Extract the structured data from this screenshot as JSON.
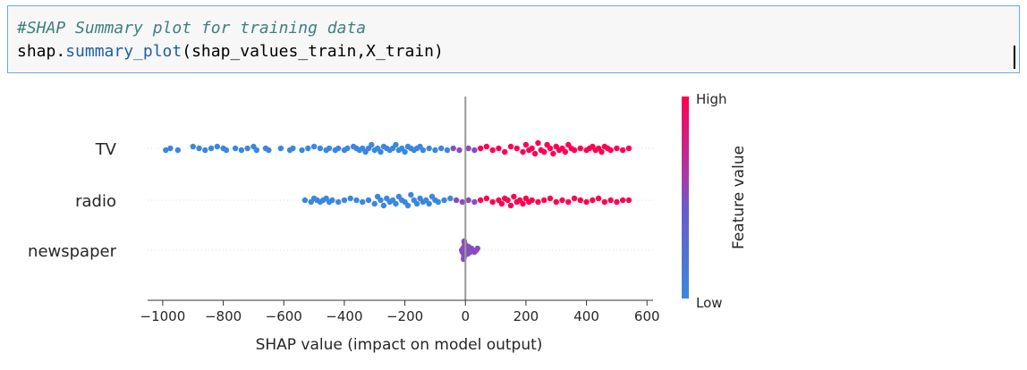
{
  "cell": {
    "comment": "#SHAP Summary plot for training data",
    "code_prefix": "shap.",
    "code_function": "summary_plot",
    "code_args": "(shap_values_train,X_train)"
  },
  "colors": {
    "low": "#3b87e0",
    "high": "#ff0052",
    "mid": "#8a4bbf",
    "zero_line": "#999999"
  },
  "chart_data": {
    "type": "scatter",
    "title": "",
    "xlabel": "SHAP value (impact on model output)",
    "ylabel": "",
    "xlim": [
      -1050,
      620
    ],
    "xticks": [
      -1000,
      -800,
      -600,
      -400,
      -200,
      0,
      200,
      400,
      600
    ],
    "xtick_labels": [
      "−1000",
      "−800",
      "−600",
      "−400",
      "−200",
      "0",
      "200",
      "400",
      "600"
    ],
    "features": [
      "TV",
      "radio",
      "newspaper"
    ],
    "colorbar": {
      "label": "Feature value",
      "high_label": "High",
      "low_label": "Low"
    },
    "series": [
      {
        "feature": "TV",
        "points": [
          [
            -990,
            0.05
          ],
          [
            -975,
            0.0
          ],
          [
            -950,
            0.05
          ],
          [
            -900,
            -0.05
          ],
          [
            -880,
            0.0
          ],
          [
            -860,
            0.05
          ],
          [
            -840,
            0.0
          ],
          [
            -820,
            -0.05
          ],
          [
            -800,
            0.0
          ],
          [
            -790,
            0.05
          ],
          [
            -760,
            0.0
          ],
          [
            -740,
            0.05
          ],
          [
            -720,
            0.0
          ],
          [
            -700,
            -0.05
          ],
          [
            -690,
            0.05
          ],
          [
            -660,
            0.0
          ],
          [
            -650,
            0.05
          ],
          [
            -610,
            0.0
          ],
          [
            -580,
            0.05
          ],
          [
            -570,
            0.0
          ],
          [
            -540,
            0.05
          ],
          [
            -520,
            0.0
          ],
          [
            -500,
            -0.05
          ],
          [
            -480,
            0.0
          ],
          [
            -460,
            0.05
          ],
          [
            -450,
            0.0
          ],
          [
            -430,
            0.05
          ],
          [
            -420,
            0.0
          ],
          [
            -400,
            0.05
          ],
          [
            -390,
            0.0
          ],
          [
            -370,
            -0.05
          ],
          [
            -360,
            0.0
          ],
          [
            -350,
            0.05
          ],
          [
            -340,
            0.0
          ],
          [
            -330,
            0.1
          ],
          [
            -320,
            0.0
          ],
          [
            -310,
            -0.1
          ],
          [
            -300,
            0.05
          ],
          [
            -290,
            0.0
          ],
          [
            -280,
            0.1
          ],
          [
            -270,
            -0.05
          ],
          [
            -260,
            0.0
          ],
          [
            -250,
            0.05
          ],
          [
            -240,
            0.0
          ],
          [
            -230,
            -0.1
          ],
          [
            -220,
            0.05
          ],
          [
            -210,
            0.0
          ],
          [
            -200,
            0.1
          ],
          [
            -190,
            -0.05
          ],
          [
            -180,
            0.0
          ],
          [
            -170,
            0.05
          ],
          [
            -160,
            0.0
          ],
          [
            -150,
            -0.05
          ],
          [
            -140,
            0.05
          ],
          [
            -120,
            0.0
          ],
          [
            -100,
            0.05
          ],
          [
            -80,
            0.0
          ],
          [
            -60,
            0.05
          ],
          [
            -40,
            0.0
          ],
          [
            -20,
            0.05
          ],
          [
            10,
            0.0
          ],
          [
            30,
            0.05
          ],
          [
            50,
            0.0
          ],
          [
            70,
            -0.05
          ],
          [
            90,
            0.05
          ],
          [
            110,
            0.0
          ],
          [
            130,
            0.1
          ],
          [
            150,
            -0.05
          ],
          [
            170,
            0.0
          ],
          [
            190,
            0.1
          ],
          [
            200,
            -0.1
          ],
          [
            210,
            0.05
          ],
          [
            220,
            0.0
          ],
          [
            230,
            0.15
          ],
          [
            240,
            -0.15
          ],
          [
            250,
            0.05
          ],
          [
            260,
            0.1
          ],
          [
            270,
            -0.1
          ],
          [
            280,
            0.0
          ],
          [
            290,
            0.15
          ],
          [
            300,
            -0.05
          ],
          [
            310,
            0.05
          ],
          [
            320,
            0.0
          ],
          [
            330,
            0.1
          ],
          [
            340,
            -0.1
          ],
          [
            350,
            0.0
          ],
          [
            360,
            0.05
          ],
          [
            380,
            0.0
          ],
          [
            400,
            0.05
          ],
          [
            410,
            0.0
          ],
          [
            420,
            -0.05
          ],
          [
            430,
            0.05
          ],
          [
            440,
            0.0
          ],
          [
            450,
            0.1
          ],
          [
            460,
            -0.05
          ],
          [
            470,
            0.0
          ],
          [
            480,
            0.05
          ],
          [
            500,
            0.0
          ],
          [
            520,
            0.05
          ],
          [
            540,
            0.0
          ]
        ]
      },
      {
        "feature": "radio",
        "points": [
          [
            -530,
            0.0
          ],
          [
            -510,
            0.05
          ],
          [
            -500,
            -0.05
          ],
          [
            -490,
            0.0
          ],
          [
            -480,
            0.05
          ],
          [
            -470,
            0.0
          ],
          [
            -460,
            -0.05
          ],
          [
            -450,
            0.05
          ],
          [
            -440,
            0.0
          ],
          [
            -420,
            0.05
          ],
          [
            -400,
            0.0
          ],
          [
            -380,
            -0.05
          ],
          [
            -360,
            0.0
          ],
          [
            -340,
            0.05
          ],
          [
            -320,
            0.0
          ],
          [
            -300,
            0.1
          ],
          [
            -290,
            -0.1
          ],
          [
            -280,
            0.0
          ],
          [
            -270,
            0.15
          ],
          [
            -260,
            -0.05
          ],
          [
            -250,
            0.05
          ],
          [
            -240,
            0.0
          ],
          [
            -230,
            0.1
          ],
          [
            -220,
            -0.1
          ],
          [
            -210,
            0.0
          ],
          [
            -200,
            0.05
          ],
          [
            -190,
            0.15
          ],
          [
            -180,
            -0.15
          ],
          [
            -170,
            0.0
          ],
          [
            -160,
            0.1
          ],
          [
            -150,
            -0.05
          ],
          [
            -140,
            0.05
          ],
          [
            -130,
            0.0
          ],
          [
            -120,
            0.1
          ],
          [
            -110,
            -0.1
          ],
          [
            -100,
            0.0
          ],
          [
            -90,
            0.05
          ],
          [
            -70,
            0.0
          ],
          [
            -50,
            -0.05
          ],
          [
            -30,
            0.0
          ],
          [
            -10,
            0.05
          ],
          [
            10,
            0.0
          ],
          [
            30,
            0.05
          ],
          [
            50,
            0.0
          ],
          [
            70,
            -0.05
          ],
          [
            90,
            0.05
          ],
          [
            110,
            0.0
          ],
          [
            120,
            0.1
          ],
          [
            130,
            -0.05
          ],
          [
            140,
            0.0
          ],
          [
            150,
            0.15
          ],
          [
            160,
            -0.1
          ],
          [
            170,
            0.05
          ],
          [
            180,
            0.0
          ],
          [
            190,
            0.1
          ],
          [
            200,
            -0.05
          ],
          [
            210,
            0.05
          ],
          [
            220,
            0.0
          ],
          [
            240,
            0.05
          ],
          [
            260,
            0.0
          ],
          [
            280,
            -0.05
          ],
          [
            300,
            0.05
          ],
          [
            320,
            0.0
          ],
          [
            340,
            0.05
          ],
          [
            360,
            -0.05
          ],
          [
            380,
            0.0
          ],
          [
            400,
            0.05
          ],
          [
            420,
            0.0
          ],
          [
            440,
            -0.05
          ],
          [
            460,
            0.05
          ],
          [
            480,
            0.0
          ],
          [
            500,
            0.05
          ],
          [
            520,
            0.0
          ],
          [
            540,
            0.0
          ]
        ]
      },
      {
        "feature": "newspaper",
        "points": [
          [
            -12,
            0.0
          ],
          [
            -10,
            0.05
          ],
          [
            -8,
            -0.05
          ],
          [
            -6,
            0.1
          ],
          [
            -4,
            -0.1
          ],
          [
            -2,
            0.15
          ],
          [
            0,
            -0.15
          ],
          [
            -5,
            0.2
          ],
          [
            -3,
            -0.2
          ],
          [
            -6,
            0.25
          ],
          [
            -4,
            -0.25
          ],
          [
            2,
            0.05
          ],
          [
            4,
            -0.05
          ],
          [
            6,
            0.0
          ],
          [
            8,
            0.1
          ],
          [
            10,
            -0.1
          ],
          [
            12,
            0.0
          ],
          [
            16,
            0.05
          ],
          [
            20,
            -0.05
          ],
          [
            26,
            0.0
          ],
          [
            30,
            0.05
          ],
          [
            36,
            0.0
          ],
          [
            40,
            -0.05
          ]
        ]
      }
    ]
  }
}
